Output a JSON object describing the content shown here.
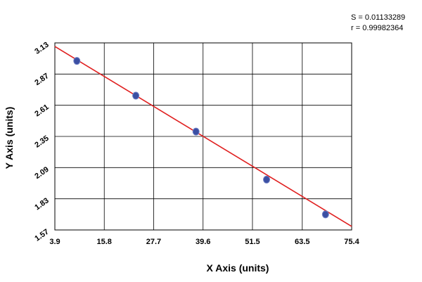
{
  "stats": {
    "s_text": "S = 0.01133289",
    "r_text": "r = 0.99982364"
  },
  "chart_data": {
    "type": "scatter",
    "xlabel": "X Axis (units)",
    "ylabel": "Y Axis (units)",
    "xlim": [
      3.9,
      75.4
    ],
    "ylim": [
      1.57,
      3.13
    ],
    "x_ticks": [
      "3.9",
      "15.8",
      "27.7",
      "39.6",
      "51.5",
      "63.5",
      "75.4"
    ],
    "y_ticks": [
      "3.13",
      "2.87",
      "2.61",
      "2.35",
      "2.09",
      "1.83",
      "1.57"
    ],
    "x_tick_values": [
      3.9,
      15.8,
      27.7,
      39.6,
      51.5,
      63.5,
      75.4
    ],
    "y_tick_values": [
      3.13,
      2.87,
      2.61,
      2.35,
      2.09,
      1.83,
      1.57
    ],
    "grid": true,
    "points": [
      {
        "x": 9.2,
        "y": 2.98
      },
      {
        "x": 23.4,
        "y": 2.69
      },
      {
        "x": 37.9,
        "y": 2.39
      },
      {
        "x": 54.9,
        "y": 1.99
      },
      {
        "x": 69.1,
        "y": 1.7
      }
    ],
    "fit_line": {
      "x": [
        3.9,
        75.4
      ],
      "y": [
        3.1,
        1.6
      ]
    },
    "colors": {
      "points": "#3b4fa3",
      "fit_line": "#e02020",
      "grid": "#000000",
      "background": "#ffffff"
    }
  }
}
